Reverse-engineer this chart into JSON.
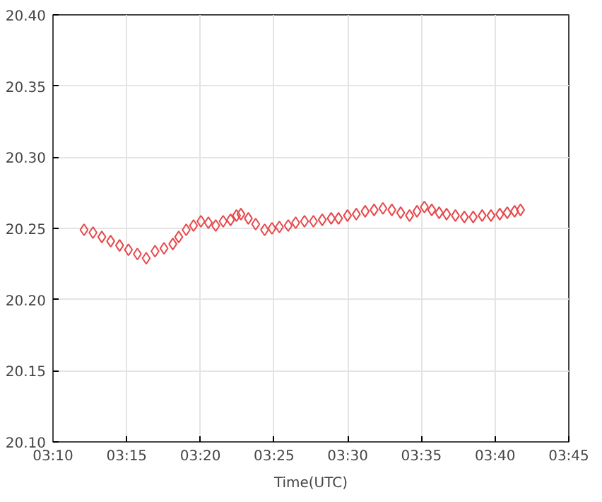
{
  "chart_data": {
    "type": "scatter",
    "xlabel": "Time(UTC)",
    "marker": "diamond",
    "grid": true,
    "xlim": [
      3.16667,
      3.75
    ],
    "ylim": [
      20.1,
      20.4
    ],
    "xticks": [
      {
        "value": 3.16667,
        "label": "03:10"
      },
      {
        "value": 3.25,
        "label": "03:15"
      },
      {
        "value": 3.33333,
        "label": "03:20"
      },
      {
        "value": 3.41667,
        "label": "03:25"
      },
      {
        "value": 3.5,
        "label": "03:30"
      },
      {
        "value": 3.58333,
        "label": "03:35"
      },
      {
        "value": 3.66667,
        "label": "03:40"
      },
      {
        "value": 3.75,
        "label": "03:45"
      }
    ],
    "yticks": [
      {
        "value": 20.1,
        "label": "20.10"
      },
      {
        "value": 20.15,
        "label": "20.15"
      },
      {
        "value": 20.2,
        "label": "20.20"
      },
      {
        "value": 20.25,
        "label": "20.25"
      },
      {
        "value": 20.3,
        "label": "20.30"
      },
      {
        "value": 20.35,
        "label": "20.35"
      },
      {
        "value": 20.4,
        "label": "20.40"
      }
    ],
    "x": [
      3.2018,
      3.2119,
      3.2219,
      3.2319,
      3.242,
      3.252,
      3.2621,
      3.2721,
      3.2821,
      3.2922,
      3.3022,
      3.3089,
      3.3173,
      3.3256,
      3.334,
      3.3424,
      3.3507,
      3.3591,
      3.3675,
      3.3742,
      3.3792,
      3.3876,
      3.3959,
      3.406,
      3.4143,
      3.4227,
      3.4327,
      3.4411,
      3.4511,
      3.4612,
      3.4712,
      3.4813,
      3.4896,
      3.4997,
      3.5097,
      3.5197,
      3.5298,
      3.5398,
      3.5499,
      3.5599,
      3.5699,
      3.5783,
      3.5867,
      3.595,
      3.6034,
      3.6118,
      3.6218,
      3.6319,
      3.6419,
      3.652,
      3.662,
      3.672,
      3.6804,
      3.6887,
      3.6954
    ],
    "series": [
      {
        "color": "#e8474a",
        "values": [
          20.249,
          20.247,
          20.244,
          20.241,
          20.238,
          20.235,
          20.232,
          20.229,
          20.234,
          20.236,
          20.239,
          20.244,
          20.249,
          20.252,
          20.255,
          20.254,
          20.252,
          20.255,
          20.256,
          20.259,
          20.26,
          20.257,
          20.253,
          20.249,
          20.25,
          20.251,
          20.252,
          20.254,
          20.255,
          20.255,
          20.256,
          20.257,
          20.257,
          20.259,
          20.26,
          20.262,
          20.263,
          20.264,
          20.263,
          20.261,
          20.259,
          20.262,
          20.265,
          20.263,
          20.261,
          20.26,
          20.259,
          20.258,
          20.258,
          20.259,
          20.259,
          20.26,
          20.261,
          20.262,
          20.263
        ]
      }
    ]
  }
}
